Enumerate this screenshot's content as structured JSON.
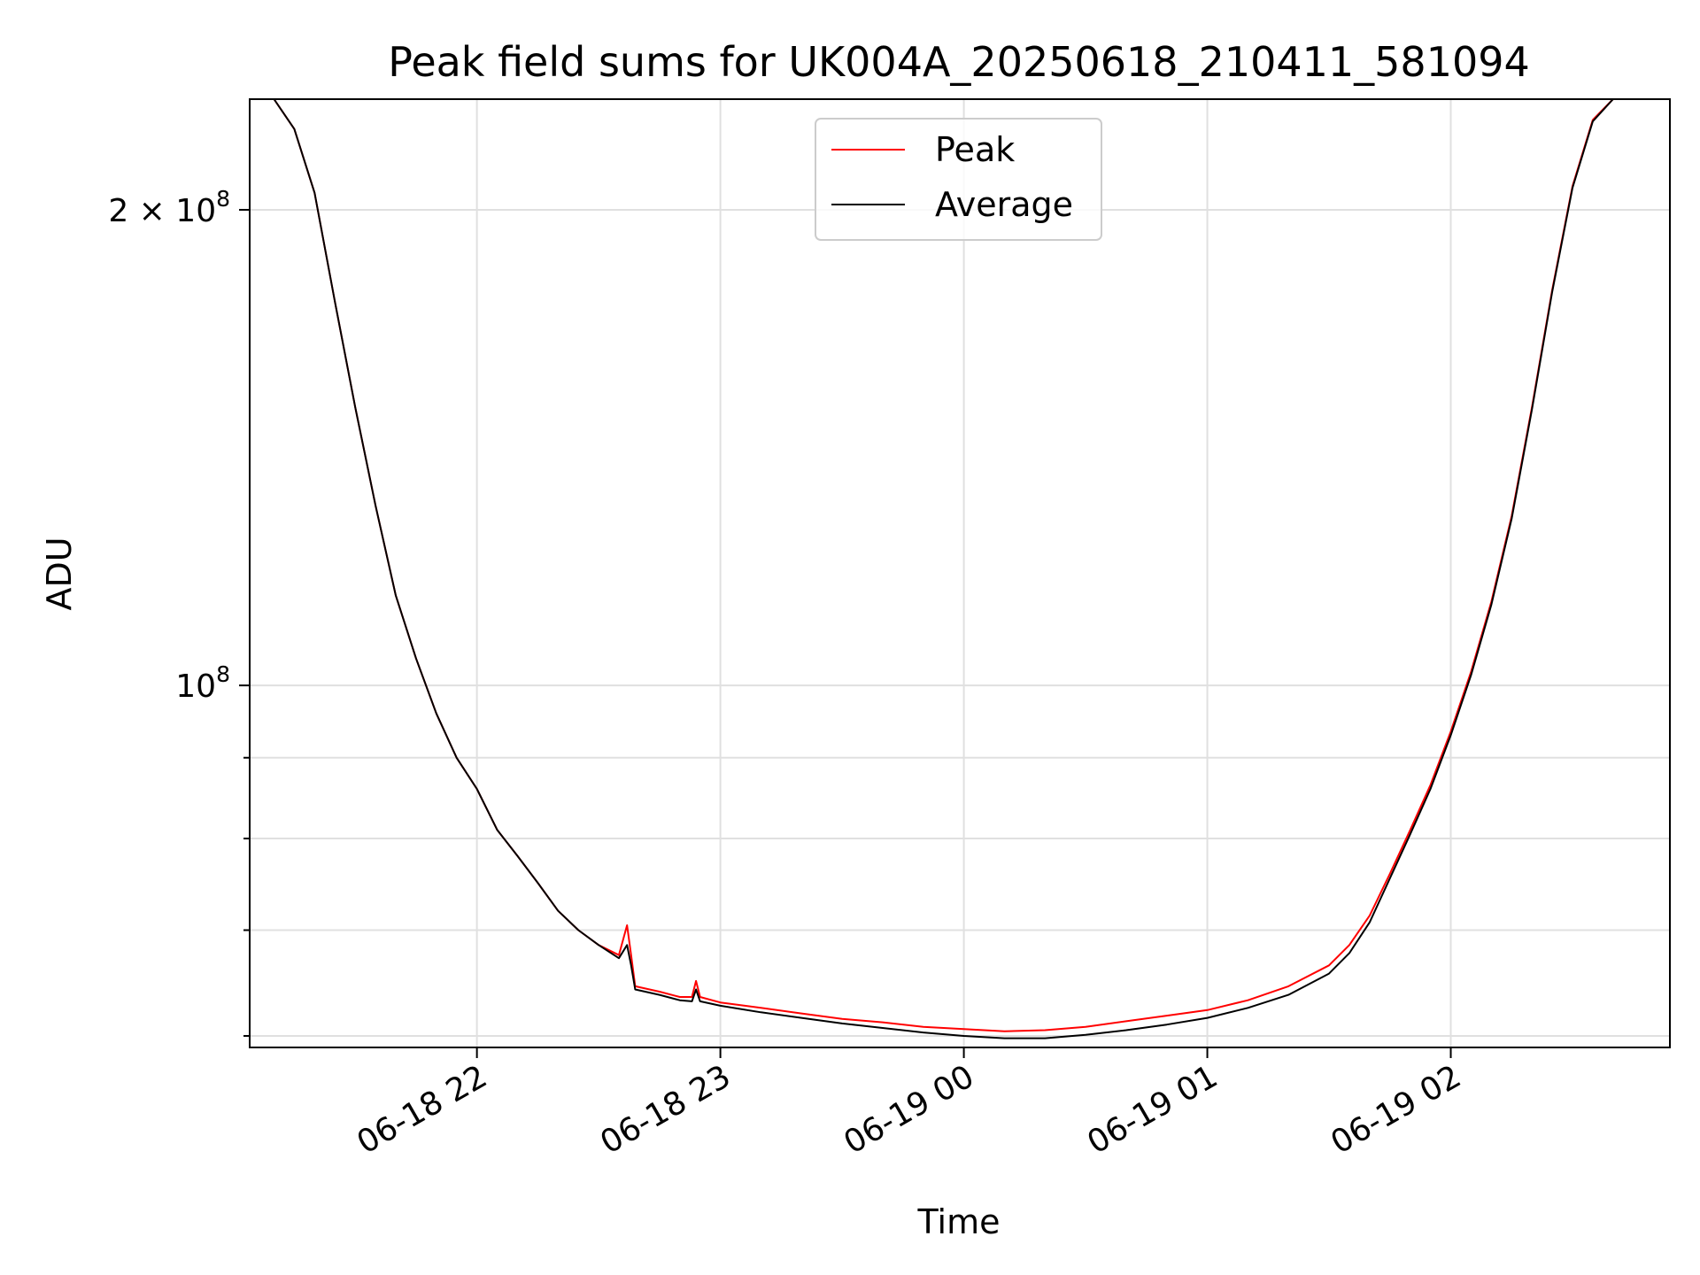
{
  "chart_data": {
    "type": "line",
    "title": "Peak field sums for UK004A_20250618_210411_581094",
    "xlabel": "Time",
    "ylabel": "ADU",
    "yscale": "log",
    "xlim": [
      "2025-06-18 21:04",
      "2025-06-19 02:54"
    ],
    "ylim": [
      59000000,
      235000000
    ],
    "x_ticks": [
      "06-18 22",
      "06-18 23",
      "06-19 00",
      "06-19 01",
      "06-19 02"
    ],
    "x_tick_times": [
      "2025-06-18 22:00",
      "2025-06-18 23:00",
      "2025-06-19 00:00",
      "2025-06-19 01:00",
      "2025-06-19 02:00"
    ],
    "y_major_ticks": [
      {
        "value": 100000000,
        "label": "10",
        "exp": "8"
      },
      {
        "value": 200000000,
        "label": "2 × 10",
        "exp": "8"
      }
    ],
    "y_minor_ticks": [
      60000000,
      70000000,
      80000000,
      90000000
    ],
    "grid": true,
    "legend_position": "top-center",
    "series": [
      {
        "name": "Peak",
        "color": "#ff0000",
        "points": [
          [
            "2025-06-18 21:04",
            235000000
          ],
          [
            "2025-06-18 21:10",
            235000000
          ],
          [
            "2025-06-18 21:15",
            225000000
          ],
          [
            "2025-06-18 21:20",
            205000000
          ],
          [
            "2025-06-18 21:25",
            175000000
          ],
          [
            "2025-06-18 21:30",
            150000000
          ],
          [
            "2025-06-18 21:35",
            130000000
          ],
          [
            "2025-06-18 21:40",
            114000000
          ],
          [
            "2025-06-18 21:45",
            104000000
          ],
          [
            "2025-06-18 21:50",
            96000000
          ],
          [
            "2025-06-18 21:55",
            90000000
          ],
          [
            "2025-06-18 22:00",
            86000000
          ],
          [
            "2025-06-18 22:05",
            81000000
          ],
          [
            "2025-06-18 22:10",
            78000000
          ],
          [
            "2025-06-18 22:15",
            75000000
          ],
          [
            "2025-06-18 22:20",
            72000000
          ],
          [
            "2025-06-18 22:25",
            70000000
          ],
          [
            "2025-06-18 22:30",
            68500000
          ],
          [
            "2025-06-18 22:35",
            67500000
          ],
          [
            "2025-06-18 22:37",
            70500000
          ],
          [
            "2025-06-18 22:38",
            67500000
          ],
          [
            "2025-06-18 22:39",
            64500000
          ],
          [
            "2025-06-18 22:45",
            64000000
          ],
          [
            "2025-06-18 22:50",
            63500000
          ],
          [
            "2025-06-18 22:53",
            63500000
          ],
          [
            "2025-06-18 22:54",
            65000000
          ],
          [
            "2025-06-18 22:55",
            63500000
          ],
          [
            "2025-06-18 23:00",
            63000000
          ],
          [
            "2025-06-18 23:10",
            62500000
          ],
          [
            "2025-06-18 23:20",
            62000000
          ],
          [
            "2025-06-18 23:30",
            61500000
          ],
          [
            "2025-06-18 23:40",
            61200000
          ],
          [
            "2025-06-18 23:50",
            60800000
          ],
          [
            "2025-06-19 00:00",
            60600000
          ],
          [
            "2025-06-19 00:10",
            60400000
          ],
          [
            "2025-06-19 00:20",
            60500000
          ],
          [
            "2025-06-19 00:30",
            60800000
          ],
          [
            "2025-06-19 00:40",
            61300000
          ],
          [
            "2025-06-19 00:50",
            61800000
          ],
          [
            "2025-06-19 01:00",
            62300000
          ],
          [
            "2025-06-19 01:10",
            63200000
          ],
          [
            "2025-06-19 01:20",
            64500000
          ],
          [
            "2025-06-19 01:30",
            66500000
          ],
          [
            "2025-06-19 01:35",
            68500000
          ],
          [
            "2025-06-19 01:40",
            71500000
          ],
          [
            "2025-06-19 01:45",
            76000000
          ],
          [
            "2025-06-19 01:50",
            81000000
          ],
          [
            "2025-06-19 01:55",
            86500000
          ],
          [
            "2025-06-19 02:00",
            93500000
          ],
          [
            "2025-06-19 02:05",
            102000000
          ],
          [
            "2025-06-19 02:10",
            113000000
          ],
          [
            "2025-06-19 02:15",
            128000000
          ],
          [
            "2025-06-19 02:20",
            150000000
          ],
          [
            "2025-06-19 02:25",
            178000000
          ],
          [
            "2025-06-19 02:30",
            207000000
          ],
          [
            "2025-06-19 02:35",
            228000000
          ],
          [
            "2025-06-19 02:40",
            235000000
          ],
          [
            "2025-06-19 02:54",
            235000000
          ]
        ]
      },
      {
        "name": "Average",
        "color": "#000000",
        "points": [
          [
            "2025-06-18 21:04",
            235000000
          ],
          [
            "2025-06-18 21:10",
            235000000
          ],
          [
            "2025-06-18 21:15",
            225000000
          ],
          [
            "2025-06-18 21:20",
            205000000
          ],
          [
            "2025-06-18 21:25",
            175000000
          ],
          [
            "2025-06-18 21:30",
            150000000
          ],
          [
            "2025-06-18 21:35",
            130000000
          ],
          [
            "2025-06-18 21:40",
            114000000
          ],
          [
            "2025-06-18 21:45",
            104000000
          ],
          [
            "2025-06-18 21:50",
            96000000
          ],
          [
            "2025-06-18 21:55",
            90000000
          ],
          [
            "2025-06-18 22:00",
            86000000
          ],
          [
            "2025-06-18 22:05",
            81000000
          ],
          [
            "2025-06-18 22:10",
            78000000
          ],
          [
            "2025-06-18 22:15",
            75000000
          ],
          [
            "2025-06-18 22:20",
            72000000
          ],
          [
            "2025-06-18 22:25",
            70000000
          ],
          [
            "2025-06-18 22:30",
            68500000
          ],
          [
            "2025-06-18 22:35",
            67200000
          ],
          [
            "2025-06-18 22:37",
            68500000
          ],
          [
            "2025-06-18 22:38",
            66500000
          ],
          [
            "2025-06-18 22:39",
            64200000
          ],
          [
            "2025-06-18 22:45",
            63700000
          ],
          [
            "2025-06-18 22:50",
            63200000
          ],
          [
            "2025-06-18 22:53",
            63100000
          ],
          [
            "2025-06-18 22:54",
            64200000
          ],
          [
            "2025-06-18 22:55",
            63100000
          ],
          [
            "2025-06-18 23:00",
            62700000
          ],
          [
            "2025-06-18 23:10",
            62100000
          ],
          [
            "2025-06-18 23:20",
            61600000
          ],
          [
            "2025-06-18 23:30",
            61100000
          ],
          [
            "2025-06-18 23:40",
            60700000
          ],
          [
            "2025-06-18 23:50",
            60300000
          ],
          [
            "2025-06-19 00:00",
            60000000
          ],
          [
            "2025-06-19 00:10",
            59800000
          ],
          [
            "2025-06-19 00:20",
            59800000
          ],
          [
            "2025-06-19 00:30",
            60100000
          ],
          [
            "2025-06-19 00:40",
            60500000
          ],
          [
            "2025-06-19 00:50",
            61000000
          ],
          [
            "2025-06-19 01:00",
            61600000
          ],
          [
            "2025-06-19 01:10",
            62500000
          ],
          [
            "2025-06-19 01:20",
            63700000
          ],
          [
            "2025-06-19 01:30",
            65700000
          ],
          [
            "2025-06-19 01:35",
            67700000
          ],
          [
            "2025-06-19 01:40",
            70800000
          ],
          [
            "2025-06-19 01:45",
            75500000
          ],
          [
            "2025-06-19 01:50",
            80500000
          ],
          [
            "2025-06-19 01:55",
            86000000
          ],
          [
            "2025-06-19 02:00",
            93000000
          ],
          [
            "2025-06-19 02:05",
            101500000
          ],
          [
            "2025-06-19 02:10",
            112500000
          ],
          [
            "2025-06-19 02:15",
            127500000
          ],
          [
            "2025-06-19 02:20",
            149500000
          ],
          [
            "2025-06-19 02:25",
            177500000
          ],
          [
            "2025-06-19 02:30",
            206500000
          ],
          [
            "2025-06-19 02:35",
            227500000
          ],
          [
            "2025-06-19 02:40",
            235000000
          ],
          [
            "2025-06-19 02:54",
            235000000
          ]
        ]
      }
    ]
  }
}
